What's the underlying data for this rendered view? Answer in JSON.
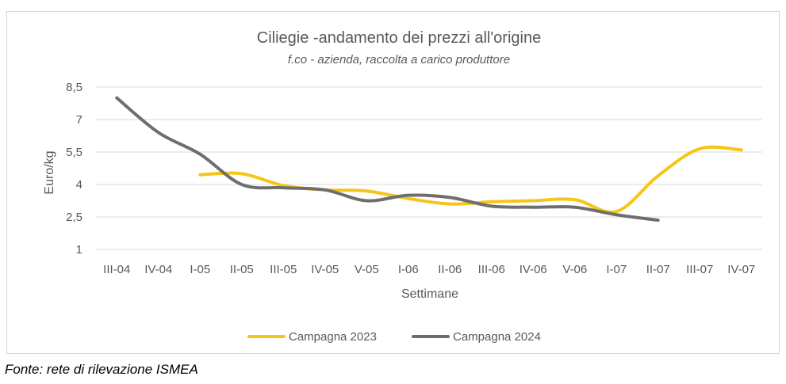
{
  "chart_data": {
    "type": "line",
    "title": "Ciliegie -andamento dei prezzi all'origine",
    "subtitle": "f.co - azienda, raccolta a carico produttore",
    "xlabel": "Settimane",
    "ylabel": "Euro/kg",
    "categories": [
      "III-04",
      "IV-04",
      "I-05",
      "II-05",
      "III-05",
      "IV-05",
      "V-05",
      "I-06",
      "II-06",
      "III-06",
      "IV-06",
      "V-06",
      "I-07",
      "II-07",
      "III-07",
      "IV-07"
    ],
    "ylim": [
      1,
      8.5
    ],
    "yticks": [
      1,
      2.5,
      4,
      5.5,
      7,
      8.5
    ],
    "ytick_labels": [
      "1",
      "2,5",
      "4",
      "5,5",
      "7",
      "8,5"
    ],
    "grid": true,
    "legend_position": "bottom",
    "series": [
      {
        "name": "Campagna 2023",
        "color": "#F5C518",
        "values": [
          null,
          null,
          4.45,
          4.5,
          3.95,
          3.75,
          3.7,
          3.35,
          3.1,
          3.2,
          3.25,
          3.3,
          2.75,
          4.4,
          5.65,
          5.6
        ]
      },
      {
        "name": "Campagna 2024",
        "color": "#6E6E6E",
        "values": [
          8.0,
          6.4,
          5.4,
          4.0,
          3.85,
          3.75,
          3.25,
          3.5,
          3.4,
          3.0,
          2.95,
          2.95,
          2.6,
          2.35,
          null,
          null
        ]
      }
    ]
  },
  "source_note": "Fonte: rete di rilevazione ISMEA"
}
